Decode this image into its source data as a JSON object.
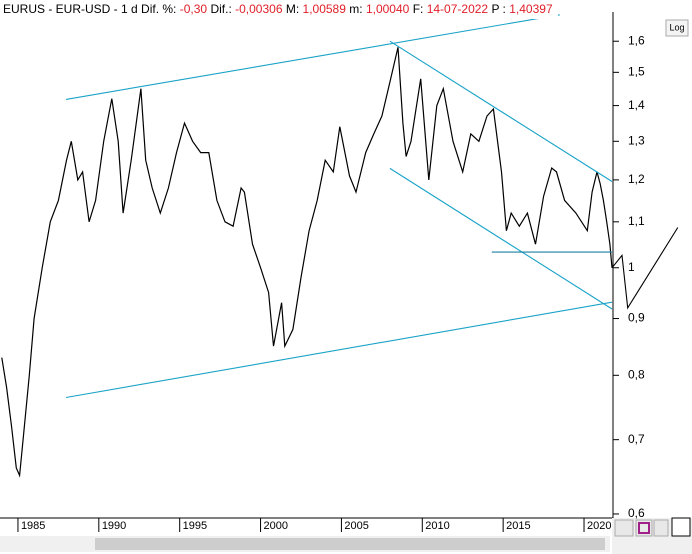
{
  "chart_data": {
    "type": "line",
    "log_scale": true,
    "grid": false,
    "header": {
      "symbol": "EURUS - EUR-USD -",
      "period": "1 d",
      "fields": [
        {
          "label": "Dif. %:",
          "value": "-0,30"
        },
        {
          "label": "Dif.:",
          "value": "-0,00306"
        },
        {
          "label": "M:",
          "value": "1,00589"
        },
        {
          "label": "m:",
          "value": "1,00040"
        },
        {
          "label": "F:",
          "value": "14-07-2022"
        },
        {
          "label": "P :",
          "value": "1,40397"
        }
      ]
    },
    "log_button": "Log",
    "xlim": [
      1983.89,
      2021.73
    ],
    "xticks": [
      1985,
      1990,
      1995,
      2000,
      2005,
      2010,
      2015,
      2020
    ],
    "ylim": [
      0.595,
      1.7
    ],
    "yticks": [
      {
        "value": 0.6,
        "label": "0,6"
      },
      {
        "value": 0.7,
        "label": "0,7"
      },
      {
        "value": 0.8,
        "label": "0,8"
      },
      {
        "value": 0.9,
        "label": "0,9"
      },
      1,
      {
        "value": 1.1,
        "label": "1,1"
      },
      {
        "value": 1.2,
        "label": "1,2"
      },
      {
        "value": 1.3,
        "label": "1,3"
      },
      {
        "value": 1.4,
        "label": "1,4"
      },
      {
        "value": 1.5,
        "label": "1,5"
      },
      {
        "value": 1.6,
        "label": "1,6"
      }
    ],
    "series": [
      {
        "color": "#000000",
        "x": [
          1984.0,
          1984.3,
          1984.6,
          1984.9,
          1985.1,
          1985.4,
          1985.7,
          1986.0,
          1986.5,
          1987.0,
          1987.5,
          1988.0,
          1988.3,
          1988.7,
          1989.0,
          1989.4,
          1989.8,
          1990.3,
          1990.8,
          1991.2,
          1991.5,
          1992.0,
          1992.6,
          1992.9,
          1993.3,
          1993.8,
          1994.3,
          1994.8,
          1995.3,
          1995.8,
          1996.3,
          1996.8,
          1997.3,
          1997.8,
          1998.3,
          1998.8,
          1999.0,
          1999.5,
          2000.0,
          2000.5,
          2000.8,
          2001.3,
          2001.5,
          2002.0,
          2002.5,
          2003.0,
          2003.5,
          2004.0,
          2004.5,
          2004.9,
          2005.5,
          2005.9,
          2006.5,
          2007.0,
          2007.5,
          2008.0,
          2008.5,
          2008.8,
          2009.0,
          2009.3,
          2009.9,
          2010.4,
          2010.9,
          2011.3,
          2011.9,
          2012.5,
          2013.0,
          2013.5,
          2014.0,
          2014.4,
          2014.9,
          2015.2,
          2015.5,
          2016.0,
          2016.5,
          2017.0,
          2017.5,
          2018.0,
          2018.3,
          2018.8,
          2019.5,
          2020.2,
          2020.5,
          2020.8,
          2021.0,
          2021.2,
          2021.4,
          2021.6,
          2021.73
        ],
        "values": [
          0.83,
          0.78,
          0.72,
          0.66,
          0.65,
          0.72,
          0.8,
          0.9,
          1.0,
          1.1,
          1.15,
          1.25,
          1.3,
          1.2,
          1.22,
          1.1,
          1.15,
          1.3,
          1.42,
          1.3,
          1.12,
          1.25,
          1.45,
          1.25,
          1.18,
          1.12,
          1.18,
          1.27,
          1.35,
          1.3,
          1.27,
          1.27,
          1.15,
          1.1,
          1.09,
          1.18,
          1.17,
          1.05,
          1.0,
          0.95,
          0.85,
          0.93,
          0.85,
          0.88,
          0.98,
          1.08,
          1.15,
          1.25,
          1.22,
          1.34,
          1.21,
          1.17,
          1.27,
          1.32,
          1.37,
          1.47,
          1.58,
          1.35,
          1.26,
          1.3,
          1.48,
          1.2,
          1.4,
          1.45,
          1.3,
          1.22,
          1.32,
          1.3,
          1.37,
          1.39,
          1.22,
          1.08,
          1.12,
          1.09,
          1.12,
          1.05,
          1.16,
          1.23,
          1.22,
          1.15,
          1.12,
          1.08,
          1.17,
          1.22,
          1.19,
          1.15,
          1.1,
          1.05,
          1.0
        ]
      }
    ],
    "drawings": [
      {
        "color": "#1aa3c8",
        "x": [
          1987.97,
          2018.5
        ],
        "y": [
          1.418,
          1.69
        ]
      },
      {
        "color": "#1aa3c8",
        "x": [
          1987.97,
          2021.73
        ],
        "y": [
          0.764,
          0.931
        ]
      },
      {
        "color": "#1aa3c8",
        "x": [
          2008.0,
          2021.73
        ],
        "y": [
          1.6,
          1.196
        ]
      },
      {
        "color": "#1aa3c8",
        "x": [
          2008.0,
          2021.73
        ],
        "y": [
          1.229,
          0.918
        ]
      },
      {
        "color": "#1a7fa0",
        "x": [
          2014.3,
          2021.73
        ],
        "y": [
          1.033,
          1.033
        ]
      },
      {
        "color": "#000000",
        "x": [
          2021.73,
          2022.35,
          2022.7,
          2025.8
        ],
        "y": [
          1.0,
          1.026,
          0.92,
          1.087
        ]
      }
    ]
  }
}
